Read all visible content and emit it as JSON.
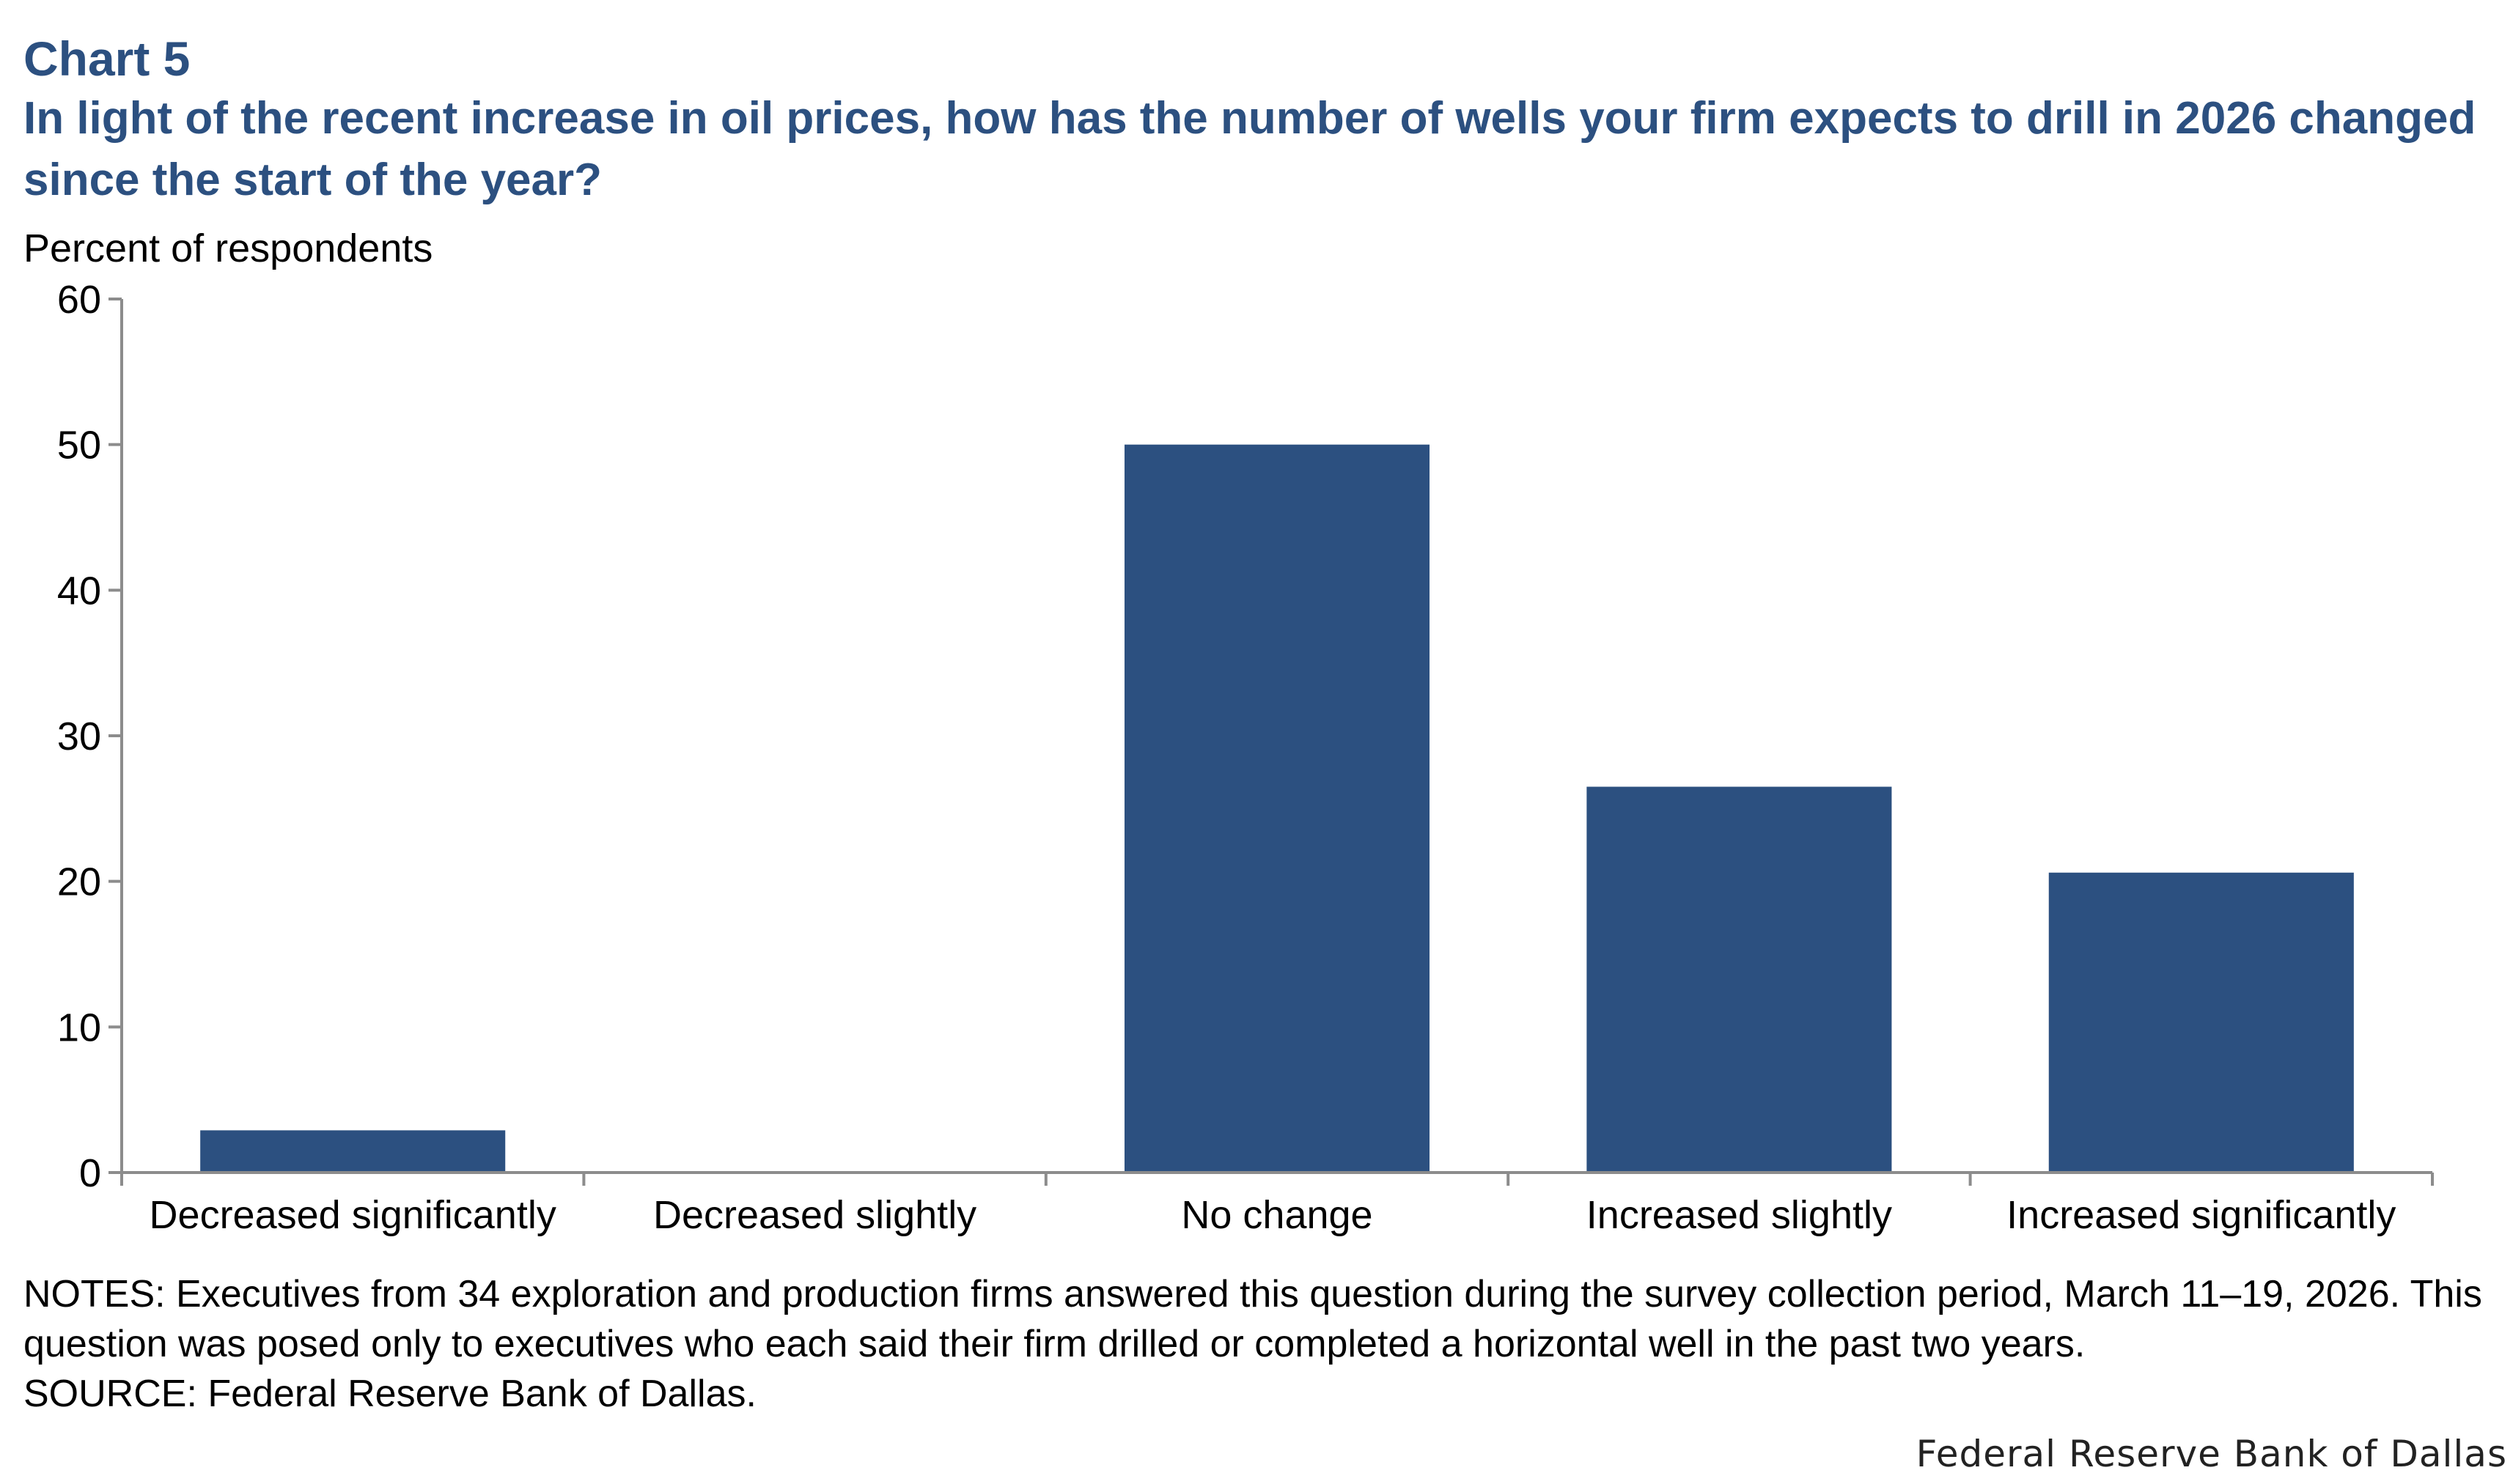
{
  "header": {
    "chart_label": "Chart 5",
    "title": "In light of the recent increase in oil prices, how has the number of wells your firm expects to drill in 2026 changed since the start of the year?"
  },
  "notes": {
    "text": "NOTES: Executives from 34 exploration and production firms answered this question during the survey collection period, March 11–19, 2026. This question was posed only to executives who each said their firm drilled or completed a horizontal well in the past two years.",
    "source": "SOURCE: Federal Reserve Bank of Dallas."
  },
  "credit": "Federal Reserve Bank of Dallas",
  "colors": {
    "bar": "#2c5080",
    "title": "#2c5080",
    "axis": "#8c8c8c"
  },
  "chart_data": {
    "type": "bar",
    "title": "In light of the recent increase in oil prices, how has the number of wells your firm expects to drill in 2026 changed since the start of the year?",
    "ylabel": "Percent of respondents",
    "xlabel": "",
    "categories": [
      "Decreased significantly",
      "Decreased slightly",
      "No change",
      "Increased slightly",
      "Increased significantly"
    ],
    "values": [
      2.9,
      0,
      50.0,
      26.5,
      20.6
    ],
    "ylim": [
      0,
      60
    ],
    "yticks": [
      0,
      10,
      20,
      30,
      40,
      50,
      60
    ],
    "grid": false,
    "legend": "none"
  }
}
